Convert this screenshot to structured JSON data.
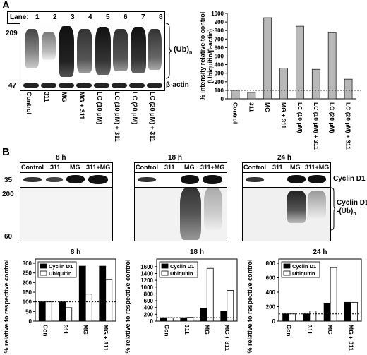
{
  "panel_a": {
    "letter": "A",
    "lane_label": "Lane:",
    "lanes": [
      "1",
      "2",
      "3",
      "4",
      "5",
      "6",
      "7",
      "8"
    ],
    "marker_top": "209",
    "marker_bottom": "47",
    "ub_label": "(Ub)",
    "ub_sub": "n",
    "actin_label": "β-actin",
    "treatments": [
      "Control",
      "311",
      "MG",
      "MG + 311",
      "LC (10 μM)",
      "LC (10 μM) + 311",
      "LC (20 μM)",
      "LC (20 μM) + 311"
    ]
  },
  "panel_b": {
    "letter": "B",
    "blots": [
      {
        "title": "8 h",
        "lanes": [
          "Control",
          "311",
          "MG",
          "311+MG"
        ]
      },
      {
        "title": "18 h",
        "lanes": [
          "Control",
          "311",
          "MG",
          "311+MG"
        ]
      },
      {
        "title": "24 h",
        "lanes": [
          "Control",
          "311",
          "MG",
          "311+MG"
        ]
      }
    ],
    "marker_35": "35",
    "marker_200": "200",
    "marker_60": "60",
    "cyclin_label": "Cyclin D1",
    "cyclin_ub_label_1": "Cyclin D1",
    "cyclin_ub_label_2": "-(Ub)",
    "cyclin_ub_sub": "n"
  },
  "chart_data": [
    {
      "type": "bar",
      "title": "",
      "ylabel": "% intensity relative to control (Ubiquitin/β-actin)",
      "categories": [
        "Control",
        "311",
        "MG",
        "MG + 311",
        "LC (10 μM)",
        "LC (10 μM) + 311",
        "LC (20 μM)",
        "LC (20 μM) + 311"
      ],
      "values": [
        100,
        75,
        950,
        360,
        850,
        345,
        775,
        230
      ],
      "ylim": [
        0,
        1000
      ],
      "yticks": [
        0,
        100,
        200,
        300,
        400,
        500,
        600,
        700,
        800,
        900,
        1000
      ],
      "reference_line": 100,
      "colors": {
        "bar": "#b8b8b8"
      }
    },
    {
      "type": "bar",
      "title": "8 h",
      "ylabel": "% relative to respective control",
      "categories": [
        "Con",
        "311",
        "MG",
        "MG + 311"
      ],
      "series": [
        {
          "name": "Cyclin D1",
          "values": [
            100,
            100,
            285,
            285
          ]
        },
        {
          "name": "Ubiquitin",
          "values": [
            100,
            70,
            140,
            215
          ]
        }
      ],
      "ylim": [
        0,
        300
      ],
      "yticks": [
        0,
        50,
        100,
        150,
        200,
        250,
        300
      ],
      "reference_line": 100,
      "legend": "top-left"
    },
    {
      "type": "bar",
      "title": "18 h",
      "ylabel": "% relative to respective control",
      "categories": [
        "Con",
        "311",
        "MG",
        "MG + 311"
      ],
      "series": [
        {
          "name": "Cyclin D1",
          "values": [
            100,
            100,
            380,
            300
          ]
        },
        {
          "name": "Ubiquitin",
          "values": [
            100,
            110,
            1550,
            900
          ]
        }
      ],
      "ylim": [
        0,
        1700
      ],
      "yticks": [
        0,
        200,
        400,
        600,
        800,
        1000,
        1200,
        1400,
        1600
      ],
      "reference_line": 100,
      "legend": "top-left"
    },
    {
      "type": "bar",
      "title": "24 h",
      "ylabel": "% relative to respective control",
      "categories": [
        "Con",
        "311",
        "MG",
        "MG + 311"
      ],
      "series": [
        {
          "name": "Cyclin D1",
          "values": [
            100,
            100,
            240,
            260
          ]
        },
        {
          "name": "Ubiquitin",
          "values": [
            100,
            140,
            740,
            260
          ]
        }
      ],
      "ylim": [
        0,
        800
      ],
      "yticks": [
        0,
        200,
        400,
        600,
        800
      ],
      "reference_line": 100,
      "legend": "top-left"
    }
  ]
}
